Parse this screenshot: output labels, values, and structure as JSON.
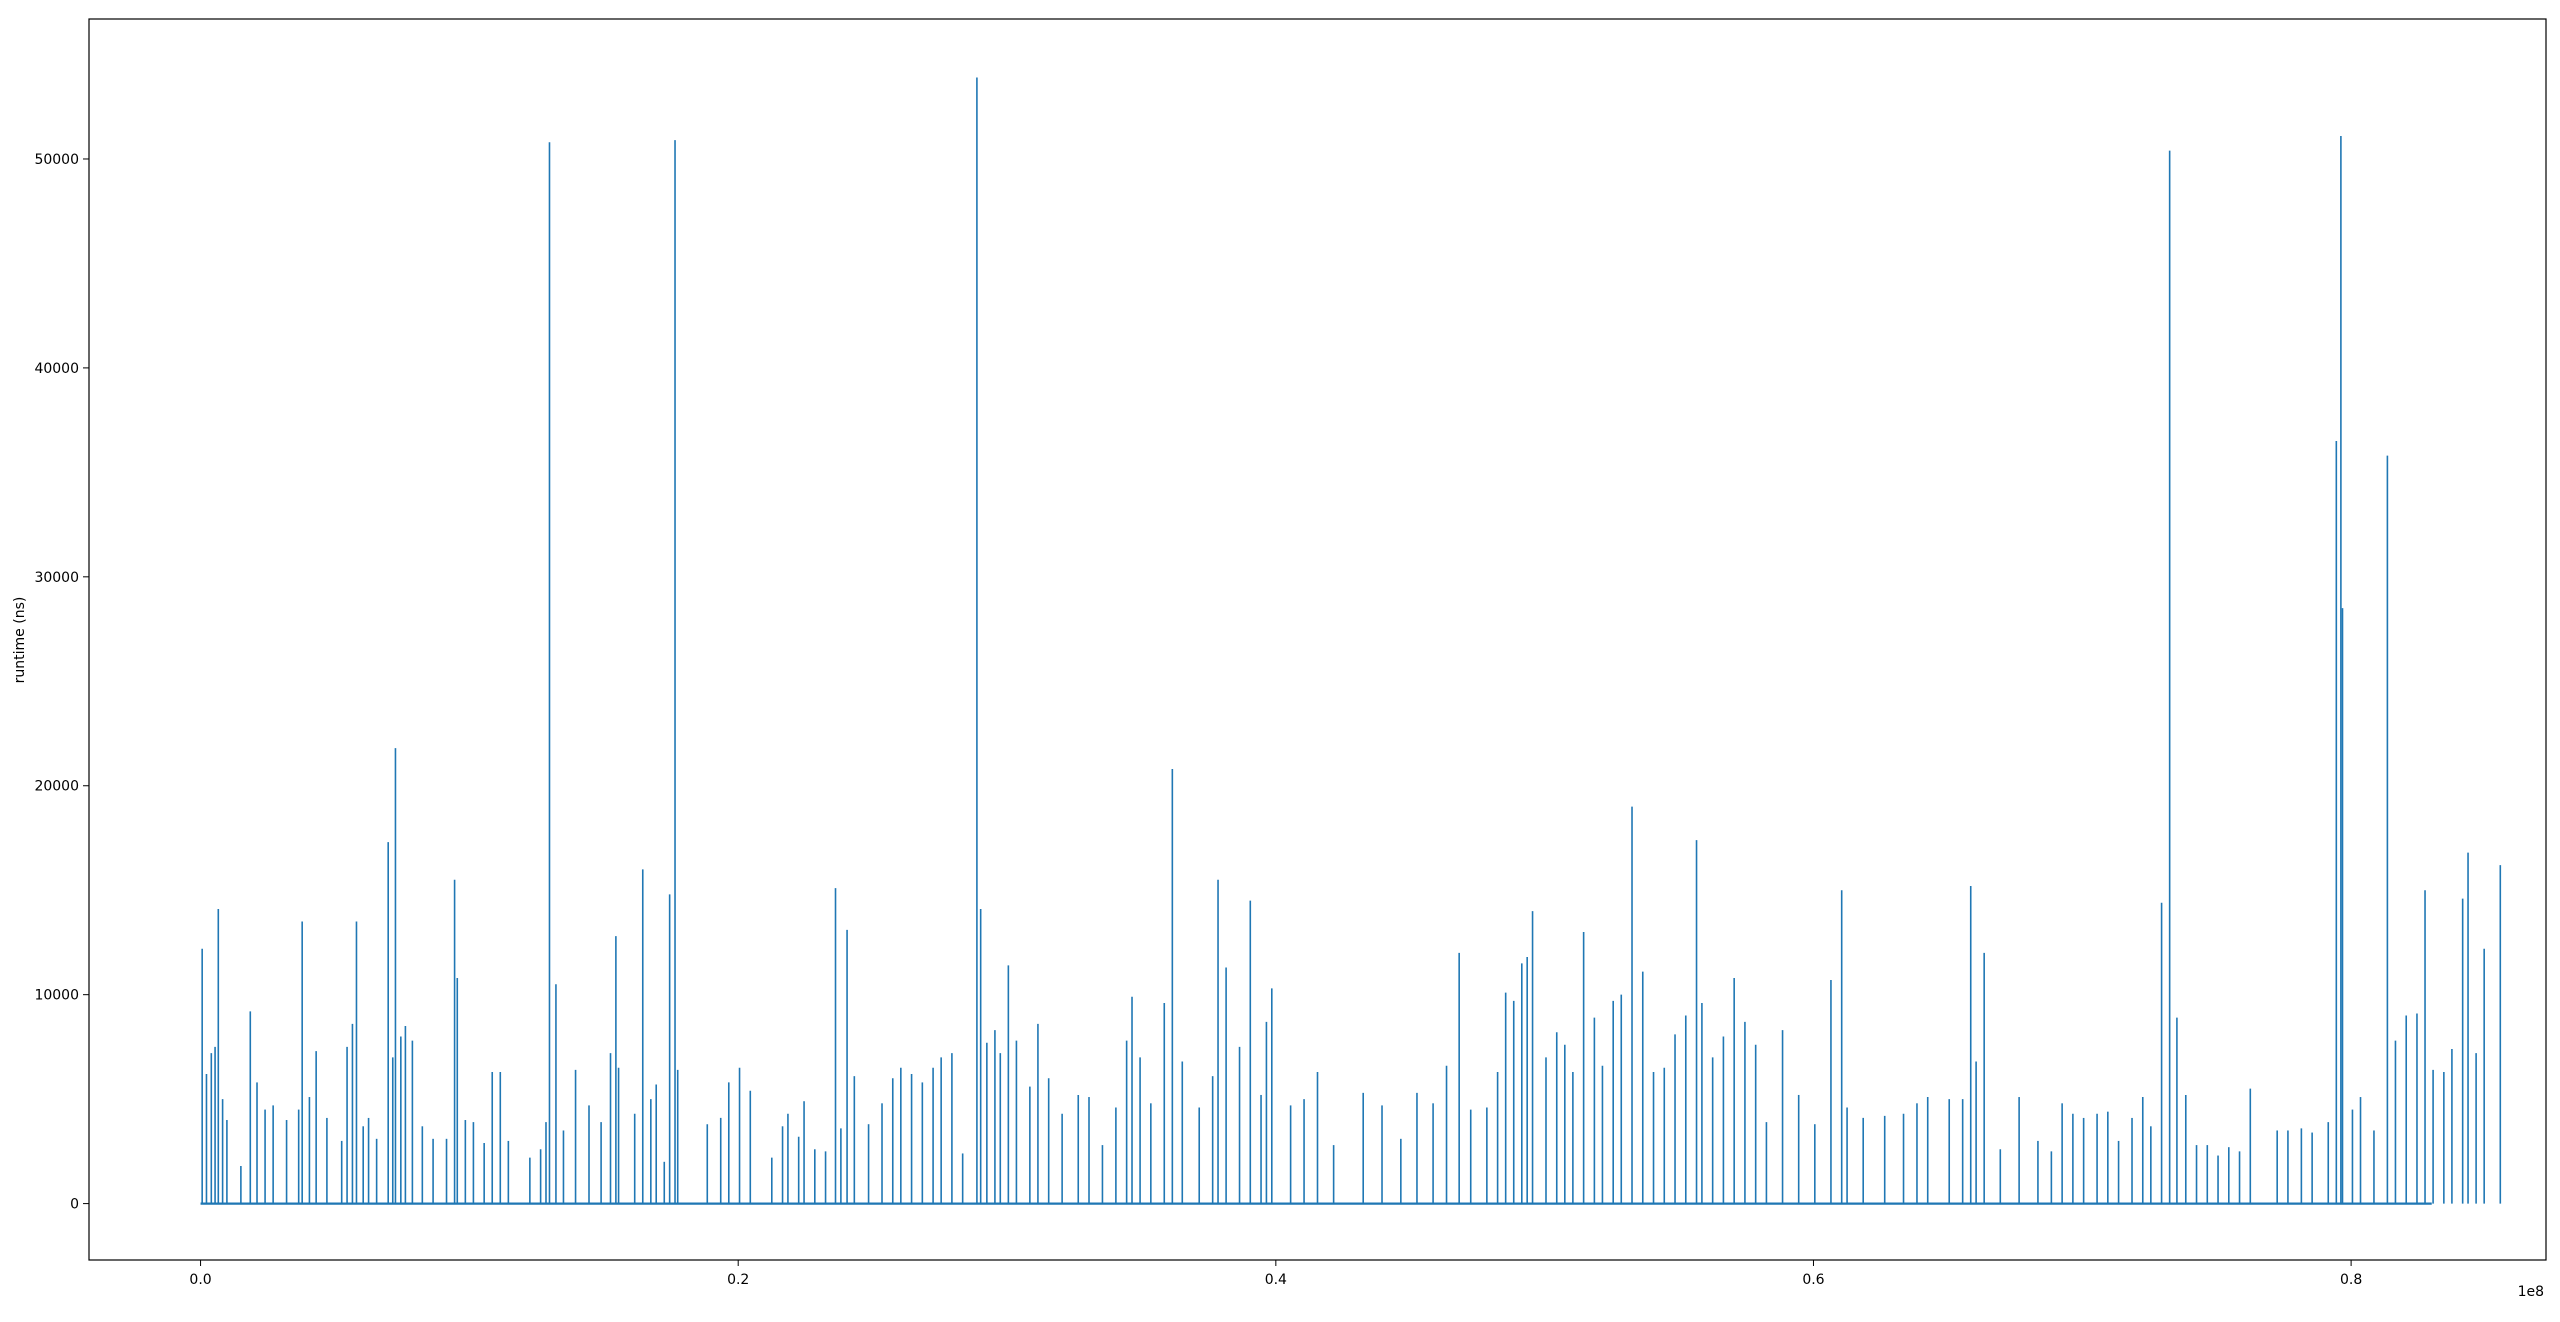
{
  "chart_data": {
    "type": "line",
    "title": "",
    "xlabel": "",
    "ylabel": "runtime (ns)",
    "x_offset_label": "1e8",
    "xlim": [
      -0.0415,
      0.8725
    ],
    "ylim": [
      -2700,
      56700
    ],
    "x_ticks": [
      0.0,
      0.2,
      0.4,
      0.6,
      0.8
    ],
    "x_tick_labels": [
      "0.0",
      "0.2",
      "0.4",
      "0.6",
      "0.8"
    ],
    "y_ticks": [
      0,
      10000,
      20000,
      30000,
      40000,
      50000
    ],
    "y_tick_labels": [
      "0",
      "10000",
      "20000",
      "30000",
      "40000",
      "50000"
    ],
    "grid": false,
    "legend": "none",
    "series": [
      {
        "color": "#1f77b4",
        "x_range": [
          0.0,
          0.83
        ],
        "baseline": 0,
        "spikes": [
          [
            0.0006,
            12200
          ],
          [
            0.0022,
            6200
          ],
          [
            0.004,
            7200
          ],
          [
            0.0054,
            7500
          ],
          [
            0.0066,
            14100
          ],
          [
            0.0082,
            5000
          ],
          [
            0.0098,
            4000
          ],
          [
            0.015,
            1800
          ],
          [
            0.0185,
            9200
          ],
          [
            0.021,
            5800
          ],
          [
            0.024,
            4500
          ],
          [
            0.027,
            4700
          ],
          [
            0.032,
            4000
          ],
          [
            0.0365,
            4500
          ],
          [
            0.0378,
            13500
          ],
          [
            0.0405,
            5100
          ],
          [
            0.043,
            7300
          ],
          [
            0.047,
            4100
          ],
          [
            0.0525,
            3000
          ],
          [
            0.0545,
            7500
          ],
          [
            0.0565,
            8600
          ],
          [
            0.058,
            13500
          ],
          [
            0.0605,
            3700
          ],
          [
            0.0625,
            4100
          ],
          [
            0.0655,
            3100
          ],
          [
            0.0698,
            17300
          ],
          [
            0.0715,
            7000
          ],
          [
            0.0725,
            21800
          ],
          [
            0.0745,
            8000
          ],
          [
            0.0762,
            8500
          ],
          [
            0.0788,
            7800
          ],
          [
            0.0825,
            3700
          ],
          [
            0.0865,
            3100
          ],
          [
            0.0915,
            3100
          ],
          [
            0.0945,
            15500
          ],
          [
            0.0955,
            10800
          ],
          [
            0.0985,
            4000
          ],
          [
            0.1015,
            3900
          ],
          [
            0.1055,
            2900
          ],
          [
            0.1085,
            6300
          ],
          [
            0.1115,
            6300
          ],
          [
            0.1145,
            3000
          ],
          [
            0.1225,
            2200
          ],
          [
            0.1265,
            2600
          ],
          [
            0.1285,
            3900
          ],
          [
            0.1298,
            50800
          ],
          [
            0.1322,
            10500
          ],
          [
            0.135,
            3500
          ],
          [
            0.1395,
            6400
          ],
          [
            0.1445,
            4700
          ],
          [
            0.149,
            3900
          ],
          [
            0.1525,
            7200
          ],
          [
            0.1545,
            12800
          ],
          [
            0.1555,
            6500
          ],
          [
            0.1615,
            4300
          ],
          [
            0.1645,
            16000
          ],
          [
            0.1675,
            5000
          ],
          [
            0.1695,
            5700
          ],
          [
            0.1725,
            2000
          ],
          [
            0.1745,
            14800
          ],
          [
            0.1765,
            50900
          ],
          [
            0.1775,
            6400
          ],
          [
            0.1885,
            3800
          ],
          [
            0.1935,
            4100
          ],
          [
            0.1965,
            5800
          ],
          [
            0.2005,
            6500
          ],
          [
            0.2045,
            5400
          ],
          [
            0.2125,
            2200
          ],
          [
            0.2165,
            3700
          ],
          [
            0.2185,
            4300
          ],
          [
            0.2225,
            3200
          ],
          [
            0.2245,
            4900
          ],
          [
            0.2285,
            2600
          ],
          [
            0.2325,
            2500
          ],
          [
            0.2362,
            15100
          ],
          [
            0.2382,
            3600
          ],
          [
            0.2405,
            13100
          ],
          [
            0.2432,
            6100
          ],
          [
            0.2485,
            3800
          ],
          [
            0.2535,
            4800
          ],
          [
            0.2575,
            6000
          ],
          [
            0.2605,
            6500
          ],
          [
            0.2645,
            6200
          ],
          [
            0.2685,
            5800
          ],
          [
            0.2725,
            6500
          ],
          [
            0.2755,
            7000
          ],
          [
            0.2795,
            7200
          ],
          [
            0.2835,
            2400
          ],
          [
            0.2888,
            53900
          ],
          [
            0.2902,
            14100
          ],
          [
            0.2925,
            7700
          ],
          [
            0.2955,
            8300
          ],
          [
            0.2975,
            7200
          ],
          [
            0.3005,
            11400
          ],
          [
            0.3035,
            7800
          ],
          [
            0.3085,
            5600
          ],
          [
            0.3115,
            8600
          ],
          [
            0.3155,
            6000
          ],
          [
            0.3205,
            4300
          ],
          [
            0.3265,
            5200
          ],
          [
            0.3305,
            5100
          ],
          [
            0.3355,
            2800
          ],
          [
            0.3405,
            4600
          ],
          [
            0.3445,
            7800
          ],
          [
            0.3465,
            9900
          ],
          [
            0.3495,
            7000
          ],
          [
            0.3535,
            4800
          ],
          [
            0.3585,
            9600
          ],
          [
            0.3615,
            20800
          ],
          [
            0.3652,
            6800
          ],
          [
            0.3715,
            4600
          ],
          [
            0.3765,
            6100
          ],
          [
            0.3785,
            15500
          ],
          [
            0.3815,
            11300
          ],
          [
            0.3865,
            7500
          ],
          [
            0.3905,
            14500
          ],
          [
            0.3945,
            5200
          ],
          [
            0.3965,
            8700
          ],
          [
            0.3985,
            10300
          ],
          [
            0.4055,
            4700
          ],
          [
            0.4105,
            5000
          ],
          [
            0.4155,
            6300
          ],
          [
            0.4215,
            2800
          ],
          [
            0.4325,
            5300
          ],
          [
            0.4395,
            4700
          ],
          [
            0.4465,
            3100
          ],
          [
            0.4525,
            5300
          ],
          [
            0.4585,
            4800
          ],
          [
            0.4635,
            6600
          ],
          [
            0.4682,
            12000
          ],
          [
            0.4725,
            4500
          ],
          [
            0.4785,
            4600
          ],
          [
            0.4825,
            6300
          ],
          [
            0.4855,
            10100
          ],
          [
            0.4885,
            9700
          ],
          [
            0.4915,
            11500
          ],
          [
            0.4935,
            11800
          ],
          [
            0.4955,
            14000
          ],
          [
            0.5005,
            7000
          ],
          [
            0.5045,
            8200
          ],
          [
            0.5075,
            7600
          ],
          [
            0.5105,
            6300
          ],
          [
            0.5145,
            13000
          ],
          [
            0.5185,
            8900
          ],
          [
            0.5215,
            6600
          ],
          [
            0.5255,
            9700
          ],
          [
            0.5285,
            10000
          ],
          [
            0.5325,
            19000
          ],
          [
            0.5365,
            11100
          ],
          [
            0.5405,
            6300
          ],
          [
            0.5445,
            6500
          ],
          [
            0.5485,
            8100
          ],
          [
            0.5525,
            9000
          ],
          [
            0.5565,
            17400
          ],
          [
            0.5585,
            9600
          ],
          [
            0.5625,
            7000
          ],
          [
            0.5665,
            8000
          ],
          [
            0.5705,
            10800
          ],
          [
            0.5745,
            8700
          ],
          [
            0.5785,
            7600
          ],
          [
            0.5825,
            3900
          ],
          [
            0.5885,
            8300
          ],
          [
            0.5945,
            5200
          ],
          [
            0.6005,
            3800
          ],
          [
            0.6065,
            10700
          ],
          [
            0.6105,
            15000
          ],
          [
            0.6125,
            4600
          ],
          [
            0.6185,
            4100
          ],
          [
            0.6265,
            4200
          ],
          [
            0.6335,
            4300
          ],
          [
            0.6385,
            4800
          ],
          [
            0.6425,
            5100
          ],
          [
            0.6505,
            5000
          ],
          [
            0.6555,
            5000
          ],
          [
            0.6585,
            15200
          ],
          [
            0.6605,
            6800
          ],
          [
            0.6635,
            12000
          ],
          [
            0.6695,
            2600
          ],
          [
            0.6765,
            5100
          ],
          [
            0.6835,
            3000
          ],
          [
            0.6885,
            2500
          ],
          [
            0.6925,
            4800
          ],
          [
            0.6965,
            4300
          ],
          [
            0.7005,
            4100
          ],
          [
            0.7055,
            4300
          ],
          [
            0.7095,
            4400
          ],
          [
            0.7135,
            3000
          ],
          [
            0.7185,
            4100
          ],
          [
            0.7225,
            5100
          ],
          [
            0.7255,
            3700
          ],
          [
            0.7295,
            14400
          ],
          [
            0.7325,
            50400
          ],
          [
            0.7352,
            8900
          ],
          [
            0.7385,
            5200
          ],
          [
            0.7425,
            2800
          ],
          [
            0.7465,
            2800
          ],
          [
            0.7505,
            2300
          ],
          [
            0.7545,
            2700
          ],
          [
            0.7585,
            2500
          ],
          [
            0.7625,
            5500
          ],
          [
            0.7725,
            3500
          ],
          [
            0.7765,
            3500
          ],
          [
            0.7815,
            3600
          ],
          [
            0.7855,
            3400
          ],
          [
            0.7915,
            3900
          ],
          [
            0.7945,
            36500
          ],
          [
            0.7962,
            51100
          ],
          [
            0.7968,
            28500
          ],
          [
            0.8005,
            4500
          ],
          [
            0.8035,
            5100
          ],
          [
            0.8085,
            3500
          ],
          [
            0.8135,
            35800
          ],
          [
            0.8165,
            7800
          ],
          [
            0.8205,
            9000
          ],
          [
            0.8245,
            9100
          ],
          [
            0.8275,
            15000
          ],
          [
            0.8305,
            6400
          ],
          [
            0.8345,
            6300
          ],
          [
            0.8375,
            7400
          ],
          [
            0.8415,
            14600
          ],
          [
            0.8435,
            16800
          ],
          [
            0.8465,
            7200
          ],
          [
            0.8495,
            12200
          ],
          [
            0.8555,
            16200
          ]
        ]
      }
    ]
  }
}
